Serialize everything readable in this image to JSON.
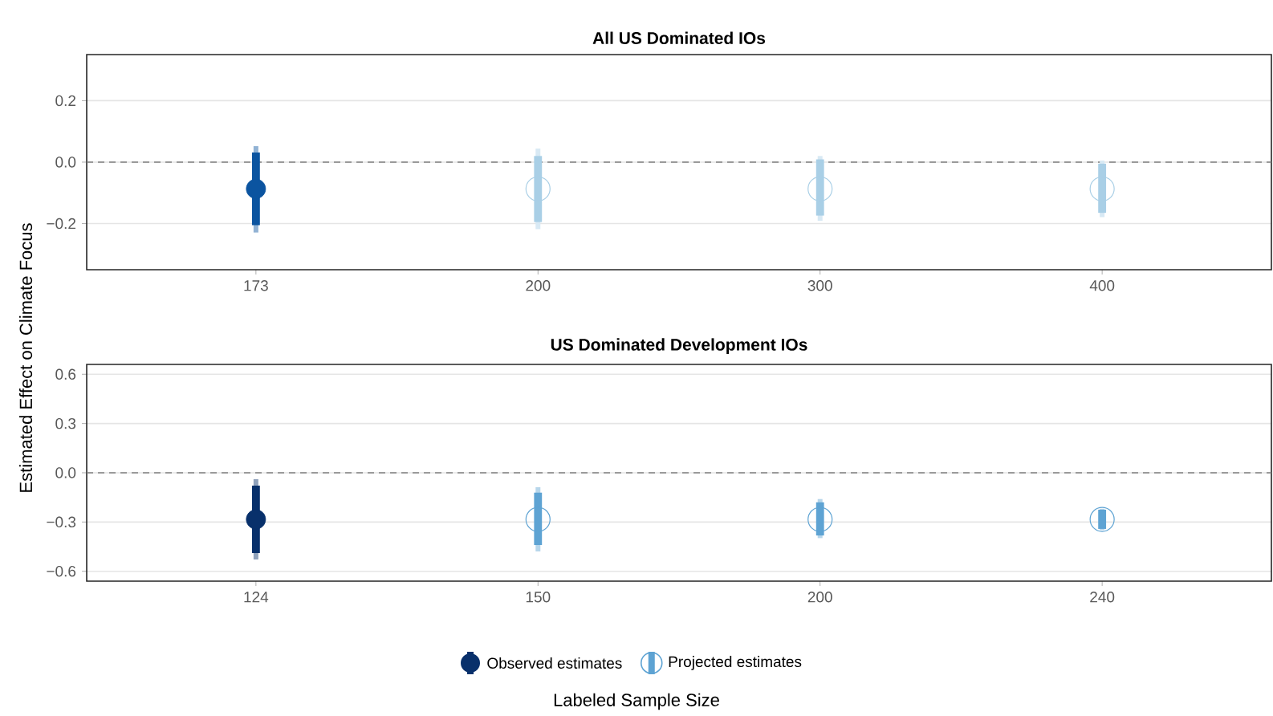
{
  "chart_data": [
    {
      "type": "box",
      "title": "All US Dominated IOs",
      "categories": [
        "173",
        "200",
        "300",
        "400"
      ],
      "series": [
        {
          "color": "#0b54a0",
          "marker": "circle",
          "boxes": [
            {
              "low": -0.229,
              "q1": -0.205,
              "median": -0.087,
              "q3": 0.031,
              "high": 0.052
            },
            null,
            null,
            null
          ]
        },
        {
          "color": "#a9cfe6",
          "marker": "circle",
          "boxes": [
            null,
            {
              "low": -0.218,
              "q1": -0.195,
              "median": -0.087,
              "q3": 0.02,
              "high": 0.044
            },
            {
              "low": -0.191,
              "q1": -0.174,
              "median": -0.087,
              "q3": 0.009,
              "high": 0.02
            },
            {
              "low": -0.179,
              "q1": -0.165,
              "median": -0.087,
              "q3": -0.005,
              "high": 0.005
            }
          ]
        }
      ],
      "ylim": [
        -0.35,
        0.35
      ],
      "yticks": [
        {
          "value": -0.2,
          "label": "−0.2"
        },
        {
          "value": 0,
          "label": "0.0"
        },
        {
          "value": 0.2,
          "label": "0.2"
        }
      ],
      "grid": "y",
      "legend": false,
      "ref_lines": [
        {
          "axis": "y",
          "value": 0,
          "color": "#808080",
          "line_style": "dashed"
        }
      ]
    },
    {
      "type": "box",
      "title": "US Dominated Development IOs",
      "xlabel": "Labeled Sample Size",
      "ylabel": "Estimated Effect on Climate Focus",
      "categories": [
        "124",
        "150",
        "200",
        "240"
      ],
      "series": [
        {
          "name": "Observed estimates",
          "color": "#08306b",
          "marker": "circle",
          "boxes": [
            {
              "low": -0.528,
              "q1": -0.489,
              "median": -0.284,
              "q3": -0.078,
              "high": -0.039
            },
            null,
            null,
            null
          ]
        },
        {
          "name": "Projected estimates",
          "color": "#5ea3d3",
          "marker": "circle",
          "boxes": [
            null,
            {
              "low": -0.479,
              "q1": -0.44,
              "median": -0.284,
              "q3": -0.121,
              "high": -0.088
            },
            {
              "low": -0.398,
              "q1": -0.382,
              "median": -0.284,
              "q3": -0.18,
              "high": -0.16
            },
            {
              "low": -0.349,
              "q1": -0.342,
              "median": -0.284,
              "q3": -0.225,
              "high": -0.219
            }
          ]
        }
      ],
      "ylim": [
        -0.66,
        0.66
      ],
      "yticks": [
        {
          "value": -0.6,
          "label": "−0.6"
        },
        {
          "value": -0.3,
          "label": "−0.3"
        },
        {
          "value": 0,
          "label": "0.0"
        },
        {
          "value": 0.3,
          "label": "0.3"
        },
        {
          "value": 0.6,
          "label": "0.6"
        }
      ],
      "grid": "y",
      "legend": "bottom",
      "ref_lines": [
        {
          "axis": "y",
          "value": 0,
          "color": "#808080",
          "line_style": "dashed"
        }
      ]
    }
  ]
}
